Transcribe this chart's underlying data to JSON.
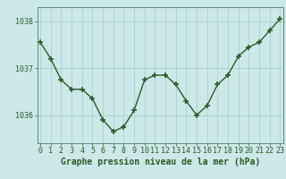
{
  "x": [
    0,
    1,
    2,
    3,
    4,
    5,
    6,
    7,
    8,
    9,
    10,
    11,
    12,
    13,
    14,
    15,
    16,
    17,
    18,
    19,
    20,
    21,
    22,
    23
  ],
  "y": [
    1037.55,
    1037.2,
    1036.75,
    1036.55,
    1036.55,
    1036.35,
    1035.9,
    1035.65,
    1035.75,
    1036.1,
    1036.75,
    1036.85,
    1036.85,
    1036.65,
    1036.3,
    1036.0,
    1036.2,
    1036.65,
    1036.85,
    1037.25,
    1037.45,
    1037.55,
    1037.8,
    1038.05
  ],
  "line_color": "#2d5a27",
  "marker_color": "#2d5a27",
  "bg_color": "#cde8e8",
  "grid_color": "#aad0d0",
  "tick_color": "#2d5a27",
  "label_color": "#2d5a27",
  "xlabel": "Graphe pression niveau de la mer (hPa)",
  "ylim": [
    1035.4,
    1038.3
  ],
  "yticks": [
    1036,
    1037,
    1038
  ],
  "xticks": [
    0,
    1,
    2,
    3,
    4,
    5,
    6,
    7,
    8,
    9,
    10,
    11,
    12,
    13,
    14,
    15,
    16,
    17,
    18,
    19,
    20,
    21,
    22,
    23
  ],
  "xlabel_fontsize": 7.0,
  "tick_fontsize": 6.0,
  "marker_size": 4,
  "line_width": 1.0
}
